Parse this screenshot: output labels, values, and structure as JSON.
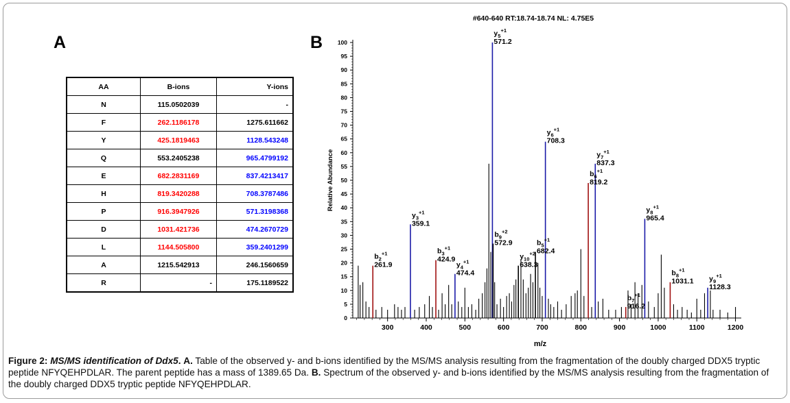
{
  "panel_a_label": "A",
  "panel_b_label": "B",
  "table": {
    "headers": [
      "AA",
      "B-ions",
      "Y-ions"
    ],
    "rows": [
      {
        "aa": "N",
        "b": "115.0502039",
        "b_color": "#000000",
        "y": "-",
        "y_color": "#000000"
      },
      {
        "aa": "F",
        "b": "262.1186178",
        "b_color": "#ff0000",
        "y": "1275.611662",
        "y_color": "#000000"
      },
      {
        "aa": "Y",
        "b": "425.1819463",
        "b_color": "#ff0000",
        "y": "1128.543248",
        "y_color": "#0000ff"
      },
      {
        "aa": "Q",
        "b": "553.2405238",
        "b_color": "#000000",
        "y": "965.4799192",
        "y_color": "#0000ff"
      },
      {
        "aa": "E",
        "b": "682.2831169",
        "b_color": "#ff0000",
        "y": "837.4213417",
        "y_color": "#0000ff"
      },
      {
        "aa": "H",
        "b": "819.3420288",
        "b_color": "#ff0000",
        "y": "708.3787486",
        "y_color": "#0000ff"
      },
      {
        "aa": "P",
        "b": "916.3947926",
        "b_color": "#ff0000",
        "y": "571.3198368",
        "y_color": "#0000ff"
      },
      {
        "aa": "D",
        "b": "1031.421736",
        "b_color": "#ff0000",
        "y": "474.2670729",
        "y_color": "#0000ff"
      },
      {
        "aa": "L",
        "b": "1144.505800",
        "b_color": "#ff0000",
        "y": "359.2401299",
        "y_color": "#0000ff"
      },
      {
        "aa": "A",
        "b": "1215.542913",
        "b_color": "#000000",
        "y": "246.1560659",
        "y_color": "#000000"
      },
      {
        "aa": "R",
        "b": "-",
        "b_color": "#000000",
        "y": "175.1189522",
        "y_color": "#000000"
      }
    ]
  },
  "chart_data": {
    "type": "bar",
    "title": "#640-640 RT:18.74-18.74 NL: 4.75E5",
    "xlabel": "m/z",
    "ylabel": "Relative Abundance",
    "xlim": [
      210,
      1215
    ],
    "ylim": [
      0,
      100
    ],
    "xticks": [
      300,
      400,
      500,
      600,
      700,
      800,
      900,
      1000,
      1100,
      1200
    ],
    "yticks": [
      0,
      5,
      10,
      15,
      20,
      25,
      30,
      35,
      40,
      45,
      50,
      55,
      60,
      65,
      70,
      75,
      80,
      85,
      90,
      95,
      100
    ],
    "colors": {
      "y_ion": "#1a1aa8",
      "b_ion": "#a01010",
      "other": "#000000"
    },
    "labeled_peaks": [
      {
        "ion": "y",
        "sub": "5",
        "sup": "+1",
        "mz": "571.2",
        "x": 571.2,
        "y": 100,
        "type": "y_ion"
      },
      {
        "ion": "y",
        "sub": "6",
        "sup": "+1",
        "mz": "708.3",
        "x": 708.3,
        "y": 64,
        "type": "y_ion"
      },
      {
        "ion": "y",
        "sub": "7",
        "sup": "+1",
        "mz": "837.3",
        "x": 837.3,
        "y": 56,
        "type": "y_ion"
      },
      {
        "ion": "b",
        "sub": "6",
        "sup": "+1",
        "mz": "819.2",
        "x": 819.2,
        "y": 49,
        "type": "b_ion"
      },
      {
        "ion": "y",
        "sub": "8",
        "sup": "+1",
        "mz": "965.4",
        "x": 965.4,
        "y": 36,
        "type": "y_ion"
      },
      {
        "ion": "y",
        "sub": "3",
        "sup": "+1",
        "mz": "359.1",
        "x": 359.1,
        "y": 34,
        "type": "y_ion"
      },
      {
        "ion": "b",
        "sub": "9",
        "sup": "+2",
        "mz": "572.9",
        "x": 572.9,
        "y": 27,
        "type": "other"
      },
      {
        "ion": "b",
        "sub": "5",
        "sup": "+1",
        "mz": "682.4",
        "x": 682.4,
        "y": 24,
        "type": "other"
      },
      {
        "ion": "b",
        "sub": "3",
        "sup": "+1",
        "mz": "424.9",
        "x": 424.9,
        "y": 21,
        "type": "b_ion"
      },
      {
        "ion": "y",
        "sub": "10",
        "sup": "+2",
        "mz": "638.3",
        "x": 638.3,
        "y": 19,
        "type": "other"
      },
      {
        "ion": "y",
        "sub": "4",
        "sup": "+1",
        "mz": "474.4",
        "x": 474.4,
        "y": 16,
        "type": "y_ion"
      },
      {
        "ion": "b",
        "sub": "2",
        "sup": "+1",
        "mz": "261.9",
        "x": 261.9,
        "y": 19,
        "type": "b_ion"
      },
      {
        "ion": "b",
        "sub": "8",
        "sup": "+1",
        "mz": "1031.1",
        "x": 1031.1,
        "y": 13,
        "type": "b_ion"
      },
      {
        "ion": "y",
        "sub": "9",
        "sup": "+1",
        "mz": "1128.3",
        "x": 1128.3,
        "y": 11,
        "type": "y_ion"
      },
      {
        "ion": "b",
        "sub": "7",
        "sup": "+1",
        "mz": "916.2",
        "x": 916.2,
        "y": 4,
        "type": "b_ion"
      }
    ],
    "unlabeled_peaks": [
      {
        "x": 224,
        "y": 19
      },
      {
        "x": 229,
        "y": 12
      },
      {
        "x": 236,
        "y": 13
      },
      {
        "x": 244,
        "y": 6
      },
      {
        "x": 252,
        "y": 4
      },
      {
        "x": 270,
        "y": 3
      },
      {
        "x": 285,
        "y": 4
      },
      {
        "x": 300,
        "y": 3
      },
      {
        "x": 318,
        "y": 5
      },
      {
        "x": 327,
        "y": 4
      },
      {
        "x": 336,
        "y": 3
      },
      {
        "x": 345,
        "y": 4
      },
      {
        "x": 370,
        "y": 3
      },
      {
        "x": 382,
        "y": 4
      },
      {
        "x": 396,
        "y": 5
      },
      {
        "x": 408,
        "y": 8
      },
      {
        "x": 416,
        "y": 4
      },
      {
        "x": 432,
        "y": 3
      },
      {
        "x": 441,
        "y": 9
      },
      {
        "x": 449,
        "y": 5
      },
      {
        "x": 458,
        "y": 12
      },
      {
        "x": 466,
        "y": 5
      },
      {
        "x": 483,
        "y": 6
      },
      {
        "x": 492,
        "y": 4
      },
      {
        "x": 500,
        "y": 11
      },
      {
        "x": 509,
        "y": 4
      },
      {
        "x": 518,
        "y": 5
      },
      {
        "x": 528,
        "y": 3
      },
      {
        "x": 536,
        "y": 7
      },
      {
        "x": 545,
        "y": 9
      },
      {
        "x": 552,
        "y": 13
      },
      {
        "x": 557,
        "y": 18
      },
      {
        "x": 562,
        "y": 56
      },
      {
        "x": 567,
        "y": 24
      },
      {
        "x": 577,
        "y": 13
      },
      {
        "x": 583,
        "y": 5
      },
      {
        "x": 592,
        "y": 7
      },
      {
        "x": 600,
        "y": 4
      },
      {
        "x": 608,
        "y": 8
      },
      {
        "x": 615,
        "y": 9
      },
      {
        "x": 621,
        "y": 6
      },
      {
        "x": 627,
        "y": 12
      },
      {
        "x": 632,
        "y": 14
      },
      {
        "x": 645,
        "y": 21
      },
      {
        "x": 651,
        "y": 14
      },
      {
        "x": 658,
        "y": 9
      },
      {
        "x": 664,
        "y": 11
      },
      {
        "x": 670,
        "y": 16
      },
      {
        "x": 676,
        "y": 13
      },
      {
        "x": 689,
        "y": 20
      },
      {
        "x": 694,
        "y": 11
      },
      {
        "x": 700,
        "y": 8
      },
      {
        "x": 716,
        "y": 7
      },
      {
        "x": 722,
        "y": 5
      },
      {
        "x": 730,
        "y": 4
      },
      {
        "x": 740,
        "y": 6
      },
      {
        "x": 750,
        "y": 3
      },
      {
        "x": 762,
        "y": 5
      },
      {
        "x": 775,
        "y": 8
      },
      {
        "x": 785,
        "y": 9
      },
      {
        "x": 791,
        "y": 10
      },
      {
        "x": 800,
        "y": 25
      },
      {
        "x": 808,
        "y": 8
      },
      {
        "x": 828,
        "y": 4
      },
      {
        "x": 845,
        "y": 6
      },
      {
        "x": 857,
        "y": 7
      },
      {
        "x": 872,
        "y": 3
      },
      {
        "x": 890,
        "y": 3
      },
      {
        "x": 905,
        "y": 4
      },
      {
        "x": 922,
        "y": 10
      },
      {
        "x": 930,
        "y": 5
      },
      {
        "x": 940,
        "y": 13
      },
      {
        "x": 948,
        "y": 9
      },
      {
        "x": 958,
        "y": 12
      },
      {
        "x": 975,
        "y": 6
      },
      {
        "x": 990,
        "y": 4
      },
      {
        "x": 1000,
        "y": 9
      },
      {
        "x": 1008,
        "y": 23
      },
      {
        "x": 1016,
        "y": 11
      },
      {
        "x": 1040,
        "y": 5
      },
      {
        "x": 1050,
        "y": 3
      },
      {
        "x": 1062,
        "y": 4
      },
      {
        "x": 1075,
        "y": 3
      },
      {
        "x": 1086,
        "y": 2
      },
      {
        "x": 1100,
        "y": 7
      },
      {
        "x": 1110,
        "y": 3
      },
      {
        "x": 1120,
        "y": 9
      },
      {
        "x": 1135,
        "y": 10
      },
      {
        "x": 1142,
        "y": 3
      },
      {
        "x": 1160,
        "y": 3
      },
      {
        "x": 1180,
        "y": 2
      },
      {
        "x": 1200,
        "y": 4
      }
    ]
  },
  "caption": {
    "fig_label": "Figure 2:",
    "fig_title": "MS/MS identification of Ddx5",
    "part_a_label": "A.",
    "part_a_text": "Table of the observed y- and b-ions identified by the MS/MS analysis resulting from the fragmentation of the doubly charged DDX5 tryptic peptide NFYQEHPDLAR. The parent peptide has a mass of 1389.65 Da.",
    "part_b_label": "B.",
    "part_b_text": "Spectrum of the observed y- and b-ions identified by the MS/MS analysis resulting from the fragmentation of the doubly charged DDX5 tryptic peptide NFYQEHPDLAR."
  }
}
